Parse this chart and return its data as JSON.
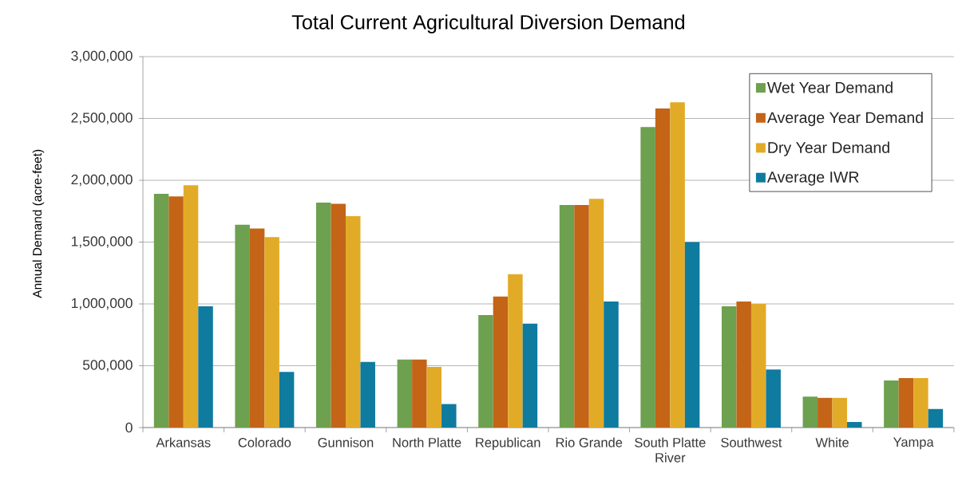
{
  "chart_data": {
    "type": "bar",
    "title": "Total Current Agricultural Diversion Demand",
    "ylabel": "Annual Demand (acre-feet)",
    "categories": [
      "Arkansas",
      "Colorado",
      "Gunnison",
      "North Platte",
      "Republican",
      "Rio Grande",
      "South Platte River",
      "Southwest",
      "White",
      "Yampa"
    ],
    "series": [
      {
        "name": "Wet Year Demand",
        "color": "#6da04f",
        "values": [
          1890000,
          1640000,
          1820000,
          550000,
          910000,
          1800000,
          2430000,
          980000,
          250000,
          380000
        ]
      },
      {
        "name": "Average Year Demand",
        "color": "#c36417",
        "values": [
          1870000,
          1610000,
          1810000,
          550000,
          1060000,
          1800000,
          2580000,
          1020000,
          240000,
          400000
        ]
      },
      {
        "name": "Dry Year Demand",
        "color": "#e2ab27",
        "values": [
          1960000,
          1540000,
          1710000,
          490000,
          1240000,
          1850000,
          2630000,
          1000000,
          240000,
          400000
        ]
      },
      {
        "name": "Average IWR",
        "color": "#0e7b9f",
        "values": [
          980000,
          450000,
          530000,
          190000,
          840000,
          1020000,
          1500000,
          470000,
          45000,
          150000
        ]
      }
    ],
    "ylim": [
      0,
      3000000
    ],
    "yticks": [
      0,
      {
        "value": 500000,
        "label": "500,000"
      },
      {
        "value": 1000000,
        "label": "1,000,000"
      },
      {
        "value": 1500000,
        "label": "1,500,000"
      },
      {
        "value": 2000000,
        "label": "2,000,000"
      },
      {
        "value": 2500000,
        "label": "2,500,000"
      },
      {
        "value": 3000000,
        "label": "3,000,000"
      }
    ],
    "grid": "y",
    "legend": "top right"
  }
}
